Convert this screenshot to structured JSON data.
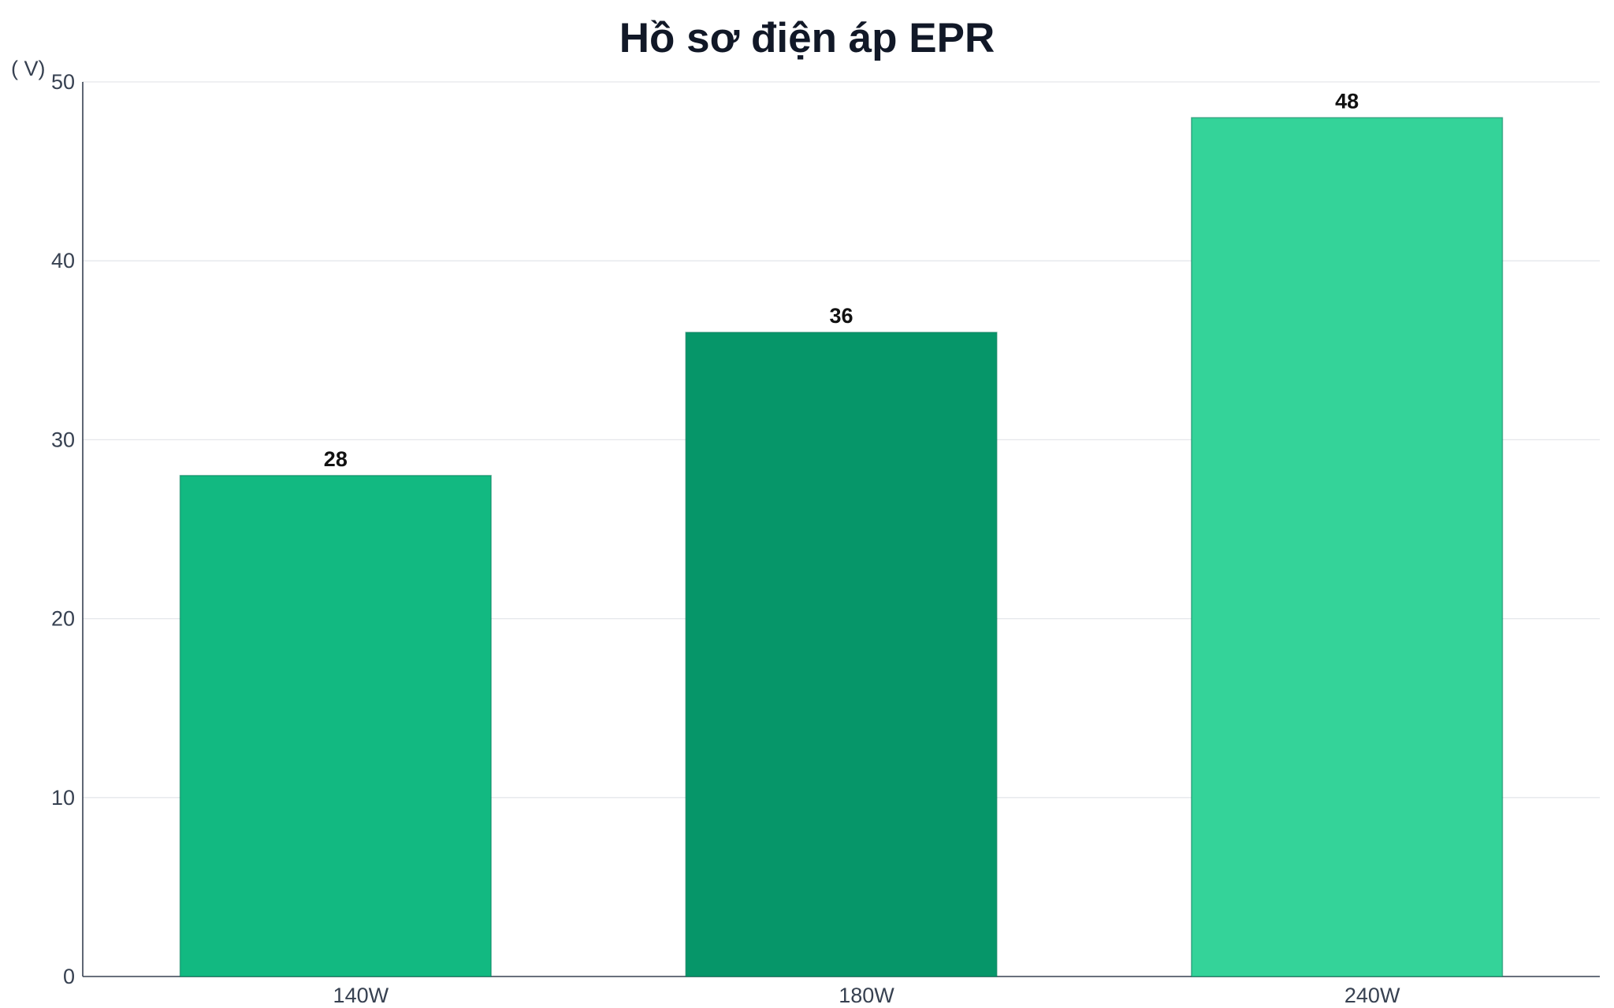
{
  "chart_data": {
    "type": "bar",
    "title": "Hồ sơ điện áp EPR",
    "ylabel": "( V)",
    "xlabel": "",
    "categories": [
      "140W",
      "180W",
      "240W"
    ],
    "values": [
      28,
      36,
      48
    ],
    "value_labels": [
      "28",
      "36",
      "48"
    ],
    "colors": [
      "#12b981",
      "#069669",
      "#34d399"
    ],
    "ylim": [
      0,
      50
    ],
    "yticks": [
      0,
      10,
      20,
      30,
      40,
      50
    ],
    "grid": true,
    "legend": "none"
  }
}
